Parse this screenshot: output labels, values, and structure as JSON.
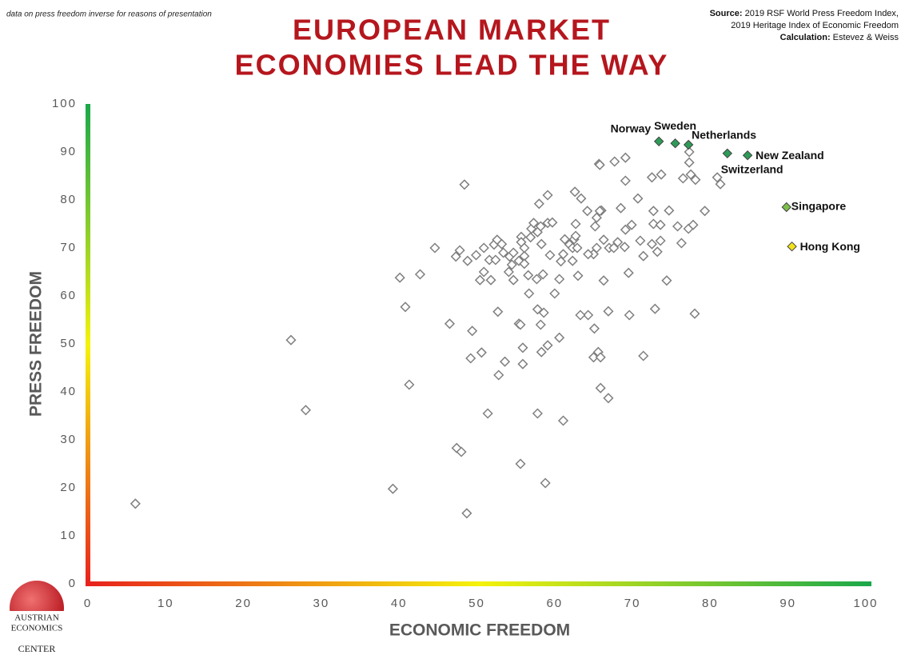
{
  "chart_data": {
    "type": "scatter",
    "note": "data on press freedom inverse for reasons of presentation",
    "title": [
      "EUROPEAN MARKET",
      "ECONOMIES LEAD THE WAY"
    ],
    "source_label": "Source:",
    "source_lines": [
      "2019 RSF World Press Freedom Index,",
      "2019 Heritage Index of Economic Freedom"
    ],
    "calculation_label": "Calculation:",
    "calculation": "Estevez & Weiss",
    "x_label": "ECONOMIC FREEDOM",
    "y_label": "PRESS FREEDOM",
    "xlim": [
      0,
      100
    ],
    "ylim": [
      0,
      100
    ],
    "xticks": [
      0,
      10,
      20,
      30,
      40,
      50,
      60,
      70,
      80,
      90,
      100
    ],
    "yticks": [
      0,
      10,
      20,
      30,
      40,
      50,
      60,
      70,
      80,
      90,
      100
    ],
    "grid": false,
    "axis_gradient": [
      "#e8201c",
      "#f5f20c",
      "#1aa84a"
    ],
    "marker_color": "#7f7f7f",
    "x": [
      6.1,
      26.1,
      28.0,
      39.2,
      41.3,
      40.8,
      40.1,
      42.7,
      44.6,
      46.5,
      48.4,
      47.4,
      48.0,
      48.7,
      49.4,
      49.2,
      50.6,
      51.4,
      52.8,
      53.6,
      52.7,
      55.4,
      55.6,
      55.9,
      55.9,
      55.6,
      58.8,
      57.8,
      61.1,
      59.1,
      58.3,
      60.6,
      58.2,
      57.8,
      58.6,
      56.7,
      60.0,
      56.6,
      57.7,
      58.5,
      60.6,
      63.0,
      66.3,
      65.0,
      64.3,
      65.4,
      66.3,
      67.0,
      67.6,
      68.1,
      69.0,
      69.5,
      71.0,
      71.4,
      72.5,
      73.2,
      73.6,
      72.9,
      74.4,
      78.0,
      71.4,
      69.6,
      66.9,
      64.3,
      63.3,
      65.1,
      65.6,
      65.0,
      65.9,
      65.9,
      66.9,
      48.8,
      47.8,
      47.3,
      49.9,
      50.9,
      50.4,
      50.9,
      51.8,
      51.6,
      52.2,
      52.6,
      53.2,
      52.4,
      53.4,
      54.2,
      54.5,
      54.1,
      54.7,
      54.7,
      55.4,
      55.7,
      55.7,
      56.1,
      56.1,
      56.1,
      56.9,
      57.0,
      57.3,
      57.8,
      58.2,
      58.0,
      59.1,
      59.1,
      59.7,
      59.4,
      58.3,
      60.8,
      61.1,
      61.3,
      61.9,
      62.3,
      62.3,
      62.5,
      62.7,
      62.9,
      62.7,
      62.6,
      63.4,
      64.2,
      65.2,
      65.4,
      66.0,
      65.8,
      65.7,
      65.8,
      67.7,
      69.1,
      69.1,
      68.5,
      69.9,
      69.1,
      70.7,
      72.5,
      73.7,
      72.7,
      72.7,
      73.6,
      74.7,
      75.8,
      76.5,
      77.3,
      77.3,
      77.5,
      78.1,
      77.2,
      77.8,
      76.3,
      79.3,
      80.9,
      81.3
    ],
    "y": [
      16.7,
      50.8,
      36.2,
      19.8,
      41.5,
      57.7,
      63.8,
      64.5,
      70.0,
      54.2,
      83.2,
      28.3,
      27.5,
      14.7,
      52.7,
      47.0,
      48.2,
      35.5,
      43.5,
      46.3,
      56.7,
      54.2,
      54.0,
      49.2,
      45.8,
      25.0,
      21.0,
      35.5,
      34.0,
      49.7,
      48.3,
      51.3,
      54.0,
      57.2,
      56.5,
      60.5,
      60.5,
      64.3,
      63.5,
      64.5,
      63.5,
      64.2,
      63.2,
      68.7,
      68.7,
      70.0,
      71.7,
      70.0,
      70.0,
      71.2,
      70.2,
      64.8,
      71.5,
      68.3,
      70.8,
      69.2,
      71.5,
      57.3,
      63.2,
      56.3,
      47.5,
      56.0,
      56.8,
      56.0,
      56.0,
      53.2,
      48.3,
      47.2,
      47.2,
      40.8,
      38.7,
      67.3,
      69.5,
      68.2,
      68.5,
      70.0,
      63.3,
      65.0,
      63.3,
      67.5,
      70.7,
      71.7,
      70.8,
      67.5,
      69.0,
      68.2,
      66.5,
      65.0,
      63.3,
      69.0,
      67.3,
      72.3,
      71.2,
      68.3,
      66.7,
      70.0,
      72.2,
      74.0,
      75.2,
      73.3,
      74.5,
      79.2,
      81.0,
      75.2,
      75.3,
      68.5,
      70.8,
      67.2,
      68.7,
      71.8,
      70.7,
      67.3,
      70.0,
      71.8,
      72.5,
      70.0,
      75.0,
      81.7,
      80.3,
      77.7,
      74.5,
      76.3,
      77.8,
      77.7,
      87.5,
      87.3,
      88.0,
      88.8,
      84.0,
      78.3,
      74.8,
      73.8,
      80.3,
      84.7,
      85.3,
      77.7,
      75.0,
      74.8,
      77.8,
      74.5,
      84.5,
      87.8,
      90.0,
      85.3,
      84.2,
      74.0,
      74.8,
      71.0,
      77.7,
      84.7,
      83.3
    ],
    "highlights": [
      {
        "name": "Norway",
        "x": 73.4,
        "y": 92.2,
        "color": "#2e9b58"
      },
      {
        "name": "Sweden",
        "x": 75.5,
        "y": 91.8,
        "color": "#2e9b58"
      },
      {
        "name": "Netherlands",
        "x": 77.2,
        "y": 91.5,
        "color": "#2e9b58"
      },
      {
        "name": "New Zealand",
        "x": 84.8,
        "y": 89.3,
        "color": "#2e9b58"
      },
      {
        "name": "Switzerland",
        "x": 82.2,
        "y": 89.7,
        "color": "#2e9b58"
      },
      {
        "name": "Singapore",
        "x": 89.8,
        "y": 78.5,
        "color": "#7cc04b"
      },
      {
        "name": "Hong Kong",
        "x": 90.5,
        "y": 70.3,
        "color": "#f2e21a"
      }
    ],
    "logo": [
      "AUSTRIAN",
      "ECONOMICS",
      "CENTER"
    ]
  }
}
